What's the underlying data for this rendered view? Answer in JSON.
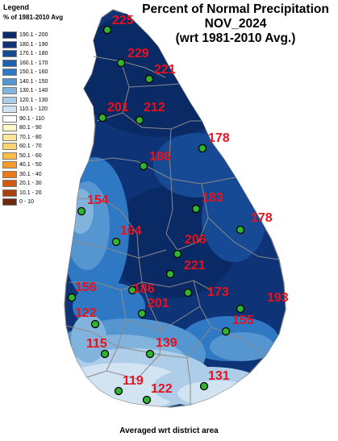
{
  "legend": {
    "title": "Legend",
    "subtitle": "% of 1981-2010 Avg",
    "items": [
      {
        "label": "190.1 - 200",
        "color": "#0a2a66"
      },
      {
        "label": "180.1 - 190",
        "color": "#0e3477"
      },
      {
        "label": "170.1 - 180",
        "color": "#174a94"
      },
      {
        "label": "160.1 - 170",
        "color": "#1f5fb0"
      },
      {
        "label": "150.1 - 160",
        "color": "#2f79c4"
      },
      {
        "label": "140.1 - 150",
        "color": "#5595d0"
      },
      {
        "label": "130.1 - 140",
        "color": "#82b3dc"
      },
      {
        "label": "120.1 - 130",
        "color": "#adcde8"
      },
      {
        "label": "110.1 - 120",
        "color": "#d2e3f2"
      },
      {
        "label": "90.1 - 110",
        "color": "#ffffff"
      },
      {
        "label": "80.1 - 90",
        "color": "#fff7c8"
      },
      {
        "label": "70.1 - 80",
        "color": "#ffe69a"
      },
      {
        "label": "60.1 - 70",
        "color": "#ffd36e"
      },
      {
        "label": "50.1 - 60",
        "color": "#ffbc48"
      },
      {
        "label": "40.1 - 50",
        "color": "#f79a2a"
      },
      {
        "label": "30.1 - 40",
        "color": "#e87a1a"
      },
      {
        "label": "20.1 - 30",
        "color": "#cf5a10"
      },
      {
        "label": "10.1 - 20",
        "color": "#a6400c"
      },
      {
        "label": "0 - 10",
        "color": "#6e2a08"
      }
    ]
  },
  "title": {
    "line1": "Percent of Normal Precipitation",
    "line2": "NOV_2024",
    "line3": "(wrt 1981-2010 Avg.)"
  },
  "footer": "Averaged wrt district area",
  "colors": {
    "value_label": "#e8111c",
    "station_dot": "#2fb52f",
    "district_line": "#8a8a8a"
  },
  "district_values": [
    "225",
    "229",
    "221",
    "201",
    "212",
    "178",
    "186",
    "183",
    "154",
    "178",
    "164",
    "206",
    "221",
    "156",
    "186",
    "173",
    "201",
    "193",
    "122",
    "155",
    "115",
    "139",
    "119",
    "122",
    "131"
  ]
}
